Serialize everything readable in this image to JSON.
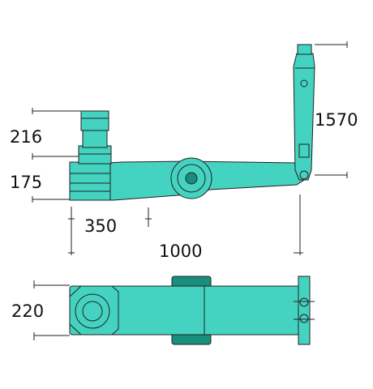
{
  "dimensions": {
    "height_saddle": "216",
    "height_min": "175",
    "pump_offset": "350",
    "length": "1000",
    "handle_height": "1570",
    "width": "220"
  },
  "colors": {
    "body": "#44d3c0",
    "dark": "#1a8e7c",
    "outline": "#222222"
  }
}
